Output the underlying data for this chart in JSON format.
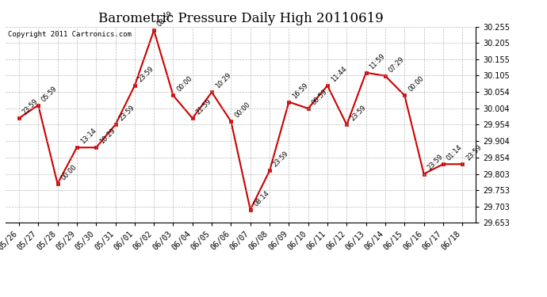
{
  "title": "Barometric Pressure Daily High 20110619",
  "copyright": "Copyright 2011 Cartronics.com",
  "x_labels": [
    "05/26",
    "05/27",
    "05/28",
    "05/29",
    "05/30",
    "05/31",
    "06/01",
    "06/02",
    "06/03",
    "06/04",
    "06/05",
    "06/06",
    "06/07",
    "06/08",
    "06/09",
    "06/10",
    "06/11",
    "06/12",
    "06/13",
    "06/14",
    "06/15",
    "06/16",
    "06/17",
    "06/18"
  ],
  "y_values": [
    29.974,
    30.014,
    29.773,
    29.884,
    29.884,
    29.954,
    30.074,
    30.244,
    30.044,
    29.974,
    30.054,
    29.964,
    29.693,
    29.813,
    30.024,
    30.004,
    30.074,
    29.954,
    30.114,
    30.104,
    30.044,
    29.803,
    29.833,
    29.833
  ],
  "point_labels": [
    "23:59",
    "05:59",
    "00:00",
    "13:14",
    "10:29",
    "23:59",
    "23:59",
    "08:59",
    "00:00",
    "21:59",
    "10:29",
    "00:00",
    "08:14",
    "23:59",
    "16:59",
    "00:59",
    "11:44",
    "23:59",
    "11:59",
    "07:29",
    "00:00",
    "23:59",
    "01:14",
    "23:59"
  ],
  "ylim_min": 29.653,
  "ylim_max": 30.255,
  "yticks": [
    29.653,
    29.703,
    29.753,
    29.803,
    29.854,
    29.904,
    29.954,
    30.004,
    30.054,
    30.105,
    30.155,
    30.205,
    30.255
  ],
  "line_color": "#cc0000",
  "marker_color": "#cc0000",
  "bg_color": "#ffffff",
  "grid_color": "#aaaaaa",
  "title_fontsize": 12,
  "tick_fontsize": 7,
  "point_label_fontsize": 6
}
